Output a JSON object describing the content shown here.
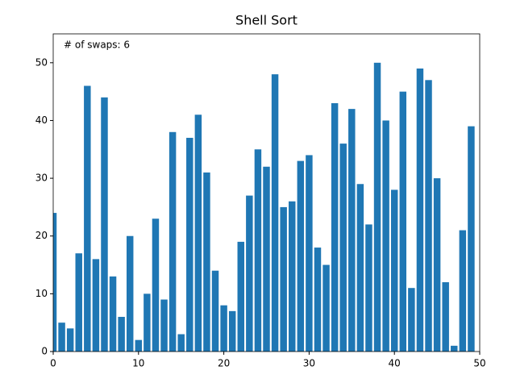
{
  "chart_data": {
    "type": "bar",
    "title": "Shell Sort",
    "annotation": "# of swaps: 6",
    "x": [
      0,
      1,
      2,
      3,
      4,
      5,
      6,
      7,
      8,
      9,
      10,
      11,
      12,
      13,
      14,
      15,
      16,
      17,
      18,
      19,
      20,
      21,
      22,
      23,
      24,
      25,
      26,
      27,
      28,
      29,
      30,
      31,
      32,
      33,
      34,
      35,
      36,
      37,
      38,
      39,
      40,
      41,
      42,
      43,
      44,
      45,
      46,
      47,
      48,
      49
    ],
    "values": [
      24,
      5,
      4,
      17,
      46,
      16,
      44,
      13,
      6,
      20,
      2,
      10,
      23,
      9,
      38,
      3,
      37,
      41,
      31,
      14,
      8,
      7,
      19,
      27,
      35,
      32,
      48,
      25,
      26,
      33,
      34,
      18,
      15,
      43,
      36,
      42,
      29,
      22,
      50,
      40,
      28,
      45,
      11,
      49,
      47,
      30,
      12,
      1,
      21,
      39
    ],
    "color": "#1f77b4",
    "xlim": [
      0,
      50
    ],
    "xticks": [
      0,
      10,
      20,
      30,
      40,
      50
    ],
    "ylim": [
      0,
      55
    ],
    "yticks": [
      0,
      10,
      20,
      30,
      40,
      50
    ],
    "grid": false
  }
}
